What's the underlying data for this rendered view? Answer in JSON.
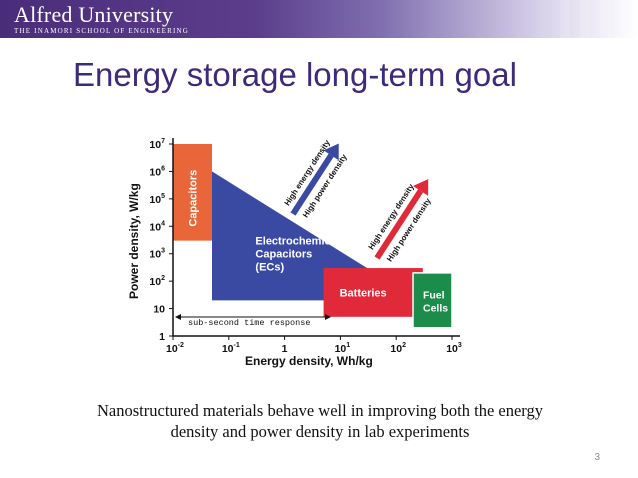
{
  "header": {
    "logo_name": "Alfred University",
    "logo_subtitle": "The Inamori School of Engineering",
    "bg_color": "#4a2d7a"
  },
  "slide": {
    "title": "Energy storage long-term goal",
    "caption_line1": "Nanostructured materials behave well in improving both the energy",
    "caption_line2": "density and power density in lab experiments",
    "page_number": "3"
  },
  "chart_data": {
    "type": "area",
    "xlabel": "Energy density, Wh/kg",
    "ylabel": "Power density, W/kg",
    "x_scale": "log",
    "y_scale": "log",
    "xlim": [
      0.01,
      1000
    ],
    "ylim": [
      1,
      10000000
    ],
    "x_ticks": [
      {
        "base": "10",
        "exp": "-2"
      },
      {
        "base": "10",
        "exp": "-1"
      },
      {
        "base": "1",
        "exp": ""
      },
      {
        "base": "10",
        "exp": "1"
      },
      {
        "base": "10",
        "exp": "2"
      },
      {
        "base": "10",
        "exp": "3"
      }
    ],
    "y_ticks": [
      {
        "base": "1",
        "exp": ""
      },
      {
        "base": "10",
        "exp": ""
      },
      {
        "base": "10",
        "exp": "2"
      },
      {
        "base": "10",
        "exp": "3"
      },
      {
        "base": "10",
        "exp": "4"
      },
      {
        "base": "10",
        "exp": "5"
      },
      {
        "base": "10",
        "exp": "6"
      },
      {
        "base": "10",
        "exp": "7"
      }
    ],
    "regions": [
      {
        "label": "Capacitors",
        "x": [
          0.01,
          0.05
        ],
        "y": [
          3000,
          10000000
        ],
        "color": "#e8663a",
        "orientation": "vertical"
      },
      {
        "label": "Electrochemical Capacitors (ECs)",
        "polygon": [
          [
            0.05,
            1000000
          ],
          [
            30,
            300
          ],
          [
            30,
            20
          ],
          [
            0.05,
            20
          ]
        ],
        "color": "#3a4aa3",
        "lines": [
          "Electrochemical",
          "Capacitors",
          "(ECs)"
        ]
      },
      {
        "label": "Batteries",
        "x": [
          5,
          300
        ],
        "y": [
          5,
          300
        ],
        "color": "#e02a3a"
      },
      {
        "label": "Fuel Cells",
        "x": [
          200,
          1000
        ],
        "y": [
          2,
          200
        ],
        "color": "#1c8c4a",
        "lines": [
          "Fuel",
          "Cells"
        ]
      }
    ],
    "annotations": [
      {
        "text": "sub-second time response",
        "type": "double-arrow"
      },
      {
        "line1": "High energy density",
        "line2": "High power density",
        "arrow": "blue"
      },
      {
        "line1": "High energy density",
        "line2": "High power density",
        "arrow": "red"
      }
    ]
  }
}
